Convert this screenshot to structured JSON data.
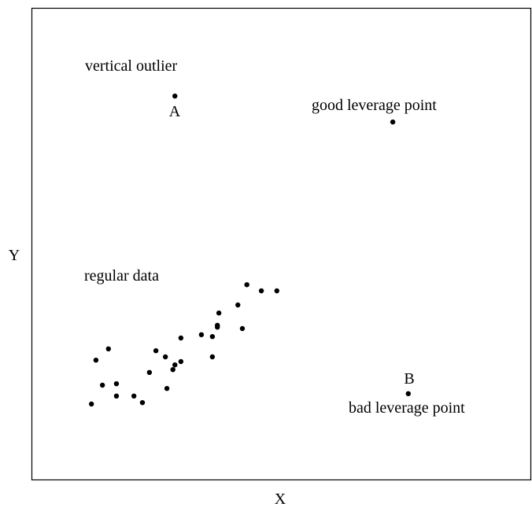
{
  "chart_data": {
    "type": "scatter",
    "xlabel": "X",
    "ylabel": "Y",
    "x": [
      12.0,
      12.9,
      14.2,
      15.4,
      17.0,
      17.0,
      20.5,
      22.2,
      23.6,
      24.9,
      26.8,
      27.1,
      28.3,
      28.7,
      29.9,
      29.9,
      34.0,
      36.2,
      36.2,
      37.2,
      37.5,
      37.2,
      41.3,
      42.2,
      43.1,
      46.0,
      49.1,
      28.7,
      72.3,
      75.4
    ],
    "values": [
      16.0,
      25.3,
      20.0,
      27.7,
      20.3,
      17.7,
      17.7,
      16.3,
      22.7,
      27.3,
      26.0,
      19.3,
      23.3,
      24.3,
      25.0,
      30.0,
      30.7,
      30.3,
      26.0,
      32.7,
      35.3,
      32.3,
      37.0,
      32.0,
      41.3,
      40.0,
      40.0,
      81.3,
      75.8,
      18.2
    ],
    "xlim": [
      0,
      100
    ],
    "ylim": [
      0,
      100
    ],
    "color": "#000000",
    "annotations": [
      "vertical outlier",
      "A",
      "good leverage point",
      "B",
      "bad leverage point",
      "regular data"
    ]
  }
}
